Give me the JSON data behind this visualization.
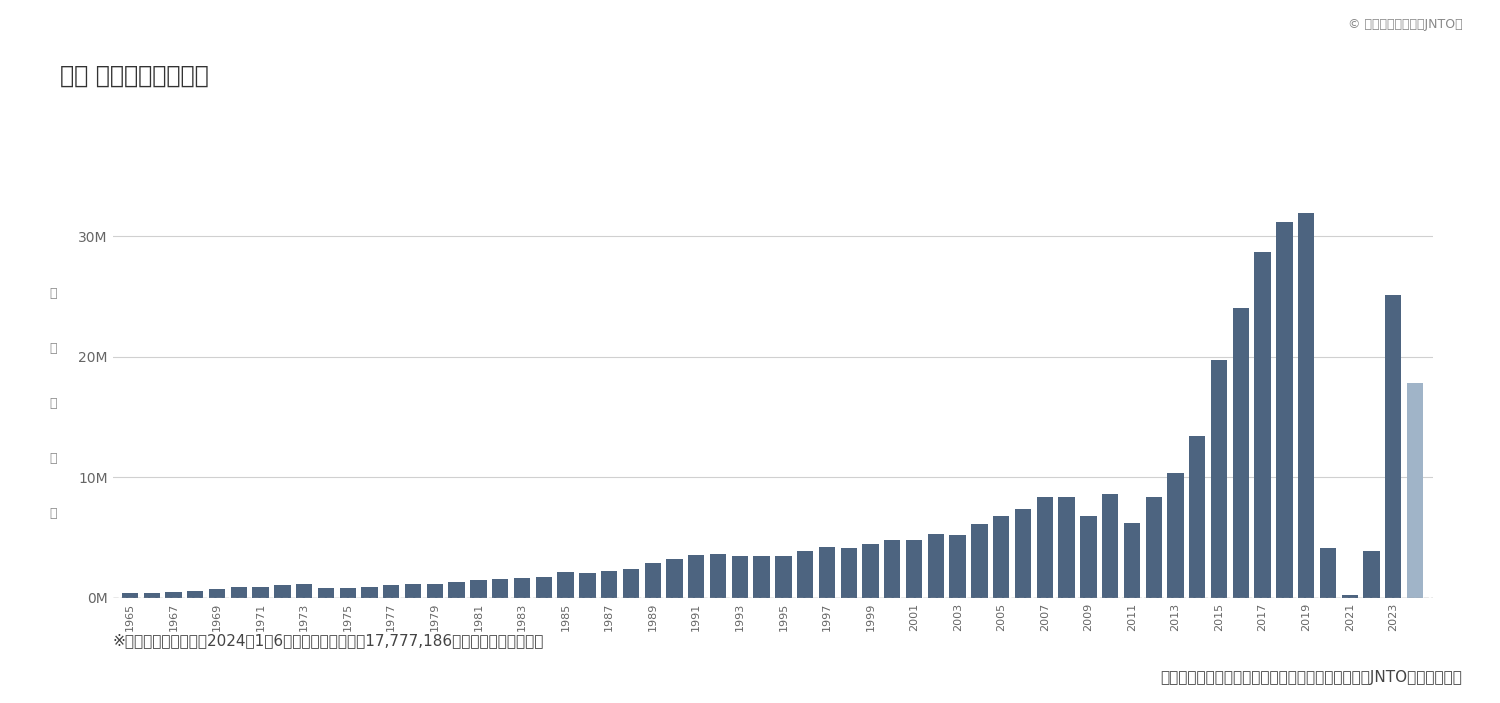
{
  "title": "年別 訪日外客数の推移",
  "copyright": "© 日本政府観光局（JNTO）",
  "ylabel_chars": [
    "訪",
    "日",
    "外",
    "客",
    "数"
  ],
  "footnote": "※グラフの一番右側は2024年1～6月分の訪日外客数（17,777,186人）を示しています。",
  "source": "出典：「日本の観光統計データ｜日本政府観光局（JNTO）」より作成",
  "years": [
    1965,
    1966,
    1967,
    1968,
    1969,
    1970,
    1971,
    1972,
    1973,
    1974,
    1975,
    1976,
    1977,
    1978,
    1979,
    1980,
    1981,
    1982,
    1983,
    1984,
    1985,
    1986,
    1987,
    1988,
    1989,
    1990,
    1991,
    1992,
    1993,
    1994,
    1995,
    1996,
    1997,
    1998,
    1999,
    2000,
    2001,
    2002,
    2003,
    2004,
    2005,
    2006,
    2007,
    2008,
    2009,
    2010,
    2011,
    2012,
    2013,
    2014,
    2015,
    2016,
    2017,
    2018,
    2019,
    2020,
    2021,
    2022,
    2023,
    2024
  ],
  "values": [
    352832,
    404226,
    495819,
    568978,
    692648,
    854195,
    861144,
    1077990,
    1083016,
    759491,
    812534,
    915477,
    1029549,
    1094745,
    1096804,
    1317226,
    1421769,
    1523376,
    1628184,
    1728470,
    2107000,
    2061771,
    2176209,
    2400000,
    2832500,
    3235800,
    3532900,
    3581600,
    3410000,
    3468000,
    3474000,
    3837000,
    4218000,
    4106000,
    4438000,
    4757000,
    4771000,
    5238000,
    5211000,
    6138000,
    6728000,
    7334000,
    8347000,
    8350000,
    6789000,
    8611000,
    6218700,
    8358100,
    10364000,
    13413000,
    19737000,
    24039000,
    28691000,
    31192000,
    31882000,
    4115828,
    245171,
    3832110,
    25066350,
    17777186
  ],
  "bar_color_main": "#4d6480",
  "bar_color_light": "#a0b4c8",
  "background_color": "#ffffff",
  "ylim_max": 35000000,
  "yticks": [
    0,
    10000000,
    20000000,
    30000000
  ],
  "ytick_labels": [
    "0M",
    "10M",
    "20M",
    "30M"
  ],
  "grid_color": "#d0d0d0",
  "title_fontsize": 17,
  "axis_fontsize": 10,
  "footnote_fontsize": 11,
  "source_fontsize": 11,
  "copyright_fontsize": 9
}
